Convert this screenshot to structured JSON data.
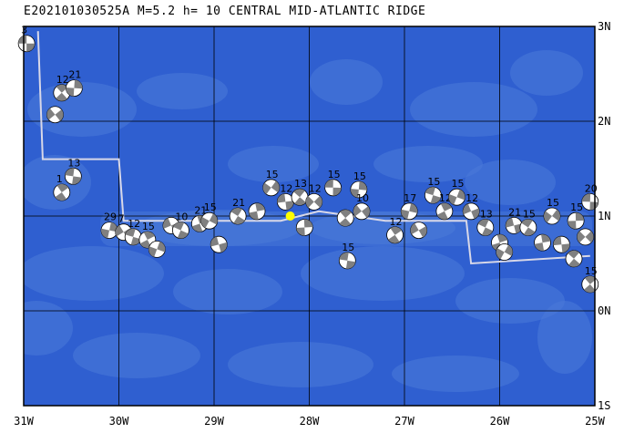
{
  "title": "E202101030525A M=5.2 h= 10 CENTRAL MID-ATLANTIC RIDGE",
  "map": {
    "lon_range": [
      -31,
      -25
    ],
    "lat_range": [
      -1,
      3
    ],
    "lon_ticks": [
      {
        "value": -31,
        "label": "31W"
      },
      {
        "value": -30,
        "label": "30W"
      },
      {
        "value": -29,
        "label": "29W"
      },
      {
        "value": -28,
        "label": "28W"
      },
      {
        "value": -27,
        "label": "27W"
      },
      {
        "value": -26,
        "label": "26W"
      },
      {
        "value": -25,
        "label": "25W"
      }
    ],
    "lat_ticks": [
      {
        "value": 3,
        "label": "3N"
      },
      {
        "value": 2,
        "label": "2N"
      },
      {
        "value": 1,
        "label": "1N"
      },
      {
        "value": 0,
        "label": "0N"
      },
      {
        "value": -1,
        "label": "1S"
      }
    ],
    "ocean_color": "#2f5fd0",
    "seafloor_color": "#4a7ad8",
    "grid_color": "#000000",
    "boundary_color": "#d8d8e8",
    "epicenter": {
      "lon": -28.2,
      "lat": 1.0,
      "color": "#ffff00"
    },
    "plate_boundary": [
      [
        -30.85,
        2.95
      ],
      [
        -30.8,
        1.6
      ],
      [
        -30.0,
        1.6
      ],
      [
        -29.95,
        0.95
      ],
      [
        -28.3,
        0.95
      ],
      [
        -27.9,
        1.05
      ],
      [
        -27.2,
        0.95
      ],
      [
        -26.35,
        0.95
      ],
      [
        -26.3,
        0.5
      ],
      [
        -25.05,
        0.58
      ]
    ],
    "mechanisms": [
      {
        "lon": -30.97,
        "lat": 2.82,
        "label": "3"
      },
      {
        "lon": -30.6,
        "lat": 2.3,
        "label": "12"
      },
      {
        "lon": -30.47,
        "lat": 2.35,
        "label": "21"
      },
      {
        "lon": -30.67,
        "lat": 2.07,
        "label": ""
      },
      {
        "lon": -30.48,
        "lat": 1.42,
        "label": "13"
      },
      {
        "lon": -30.6,
        "lat": 1.25,
        "label": "1"
      },
      {
        "lon": -30.1,
        "lat": 0.85,
        "label": "29"
      },
      {
        "lon": -29.95,
        "lat": 0.83,
        "label": "7"
      },
      {
        "lon": -29.85,
        "lat": 0.78,
        "label": "12"
      },
      {
        "lon": -29.7,
        "lat": 0.75,
        "label": "15"
      },
      {
        "lon": -29.6,
        "lat": 0.65,
        "label": ""
      },
      {
        "lon": -29.45,
        "lat": 0.9,
        "label": ""
      },
      {
        "lon": -29.35,
        "lat": 0.85,
        "label": "10"
      },
      {
        "lon": -29.15,
        "lat": 0.92,
        "label": "21"
      },
      {
        "lon": -29.05,
        "lat": 0.95,
        "label": "15"
      },
      {
        "lon": -28.95,
        "lat": 0.7,
        "label": ""
      },
      {
        "lon": -28.75,
        "lat": 1.0,
        "label": "21"
      },
      {
        "lon": -28.55,
        "lat": 1.05,
        "label": ""
      },
      {
        "lon": -28.4,
        "lat": 1.3,
        "label": "15"
      },
      {
        "lon": -28.25,
        "lat": 1.15,
        "label": "12"
      },
      {
        "lon": -28.1,
        "lat": 1.2,
        "label": "13"
      },
      {
        "lon": -28.05,
        "lat": 0.88,
        "label": ""
      },
      {
        "lon": -27.95,
        "lat": 1.15,
        "label": "12"
      },
      {
        "lon": -27.75,
        "lat": 1.3,
        "label": "15"
      },
      {
        "lon": -27.62,
        "lat": 0.98,
        "label": ""
      },
      {
        "lon": -27.48,
        "lat": 1.28,
        "label": "15"
      },
      {
        "lon": -27.45,
        "lat": 1.05,
        "label": "10"
      },
      {
        "lon": -27.6,
        "lat": 0.53,
        "label": "15"
      },
      {
        "lon": -27.1,
        "lat": 0.8,
        "label": "12"
      },
      {
        "lon": -26.95,
        "lat": 1.05,
        "label": "17"
      },
      {
        "lon": -26.85,
        "lat": 0.85,
        "label": ""
      },
      {
        "lon": -26.7,
        "lat": 1.22,
        "label": "15"
      },
      {
        "lon": -26.58,
        "lat": 1.05,
        "label": "12"
      },
      {
        "lon": -26.45,
        "lat": 1.2,
        "label": "15"
      },
      {
        "lon": -26.3,
        "lat": 1.05,
        "label": "12"
      },
      {
        "lon": -26.15,
        "lat": 0.88,
        "label": "13"
      },
      {
        "lon": -26.0,
        "lat": 0.72,
        "label": ""
      },
      {
        "lon": -25.95,
        "lat": 0.62,
        "label": ""
      },
      {
        "lon": -25.85,
        "lat": 0.9,
        "label": "21"
      },
      {
        "lon": -25.7,
        "lat": 0.88,
        "label": "15"
      },
      {
        "lon": -25.55,
        "lat": 0.72,
        "label": ""
      },
      {
        "lon": -25.45,
        "lat": 1.0,
        "label": "15"
      },
      {
        "lon": -25.35,
        "lat": 0.7,
        "label": ""
      },
      {
        "lon": -25.22,
        "lat": 0.55,
        "label": ""
      },
      {
        "lon": -25.2,
        "lat": 0.95,
        "label": "15"
      },
      {
        "lon": -25.1,
        "lat": 0.78,
        "label": ""
      },
      {
        "lon": -25.05,
        "lat": 1.15,
        "label": "20"
      },
      {
        "lon": -25.05,
        "lat": 0.28,
        "label": "15"
      }
    ]
  }
}
